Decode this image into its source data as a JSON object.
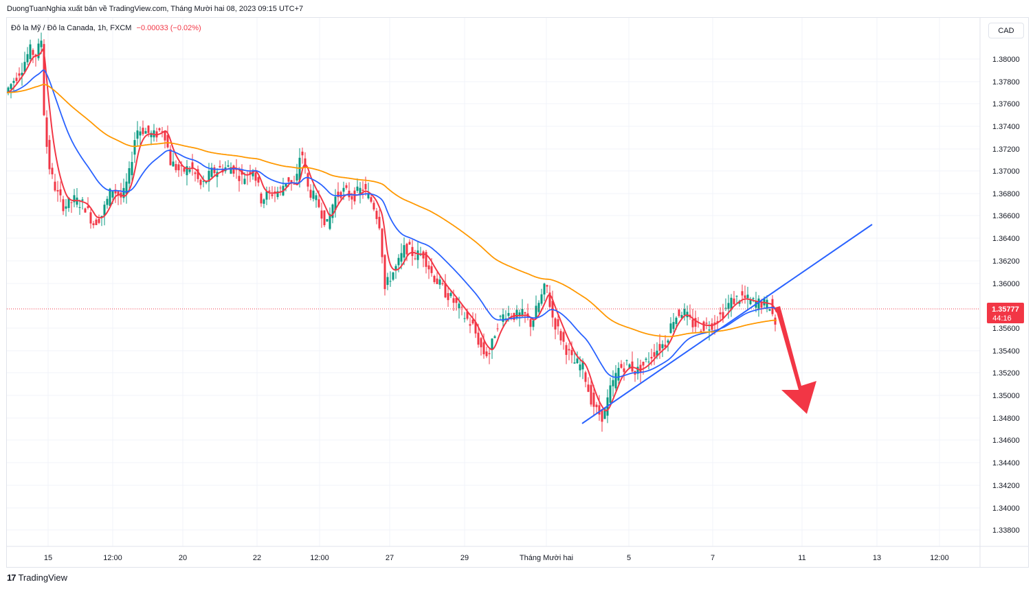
{
  "header": {
    "publish_line": "DuongTuanNghia xuất bản về TradingView.com, Tháng Mười hai 08, 2023 09:15 UTC+7"
  },
  "legend": {
    "symbol": "Đô la Mỹ / Đô la Canada, 1h, FXCM",
    "change": "−0.00033 (−0.02%)"
  },
  "currency_button": "CAD",
  "price_label": {
    "price": "1.35777",
    "countdown": "44:16"
  },
  "footer": {
    "brand": "TradingView",
    "logo": "17"
  },
  "colors": {
    "up": "#089981",
    "down": "#f23645",
    "ema_fast": "#f23645",
    "ema_mid": "#2962ff",
    "ema_slow": "#ff9800",
    "trendline": "#2962ff",
    "arrow": "#f23645",
    "grid": "#f0f3fa"
  },
  "chart_data": {
    "type": "candlestick",
    "timeframe": "1h",
    "instrument": "USD/CAD",
    "ylim": [
      1.3372,
      1.3853
    ],
    "y_ticks": [
      "1.38000",
      "1.37800",
      "1.37600",
      "1.37400",
      "1.37200",
      "1.37000",
      "1.36800",
      "1.36600",
      "1.36400",
      "1.36200",
      "1.36000",
      "1.35600",
      "1.35400",
      "1.35200",
      "1.35000",
      "1.34800",
      "1.34600",
      "1.34400",
      "1.34200",
      "1.34000",
      "1.33800"
    ],
    "x_ticks": [
      "15",
      "12:00",
      "20",
      "22",
      "12:00",
      "27",
      "29",
      "Tháng Mười hai",
      "5",
      "7",
      "11",
      "13",
      "12:00"
    ],
    "current_price": 1.35777,
    "price_path": [
      [
        0,
        1.3795
      ],
      [
        10,
        1.3805
      ],
      [
        25,
        1.382
      ],
      [
        35,
        1.3835
      ],
      [
        45,
        1.383
      ],
      [
        52,
        1.3845
      ],
      [
        57,
        1.376
      ],
      [
        65,
        1.372
      ],
      [
        75,
        1.37
      ],
      [
        85,
        1.3688
      ],
      [
        100,
        1.3694
      ],
      [
        115,
        1.3689
      ],
      [
        128,
        1.3672
      ],
      [
        140,
        1.368
      ],
      [
        155,
        1.3705
      ],
      [
        170,
        1.3695
      ],
      [
        180,
        1.3718
      ],
      [
        190,
        1.376
      ],
      [
        200,
        1.376
      ],
      [
        215,
        1.3754
      ],
      [
        230,
        1.3762
      ],
      [
        240,
        1.373
      ],
      [
        255,
        1.372
      ],
      [
        270,
        1.3725
      ],
      [
        285,
        1.3706
      ],
      [
        300,
        1.372
      ],
      [
        315,
        1.3724
      ],
      [
        330,
        1.3725
      ],
      [
        345,
        1.3714
      ],
      [
        360,
        1.3725
      ],
      [
        372,
        1.3695
      ],
      [
        385,
        1.37
      ],
      [
        400,
        1.3703
      ],
      [
        410,
        1.3715
      ],
      [
        422,
        1.3705
      ],
      [
        430,
        1.3745
      ],
      [
        440,
        1.3705
      ],
      [
        455,
        1.369
      ],
      [
        468,
        1.367
      ],
      [
        478,
        1.3695
      ],
      [
        490,
        1.3703
      ],
      [
        505,
        1.3697
      ],
      [
        520,
        1.3705
      ],
      [
        535,
        1.369
      ],
      [
        545,
        1.367
      ],
      [
        552,
        1.361
      ],
      [
        560,
        1.3622
      ],
      [
        570,
        1.3632
      ],
      [
        582,
        1.365
      ],
      [
        595,
        1.3642
      ],
      [
        608,
        1.3643
      ],
      [
        620,
        1.3625
      ],
      [
        635,
        1.3611
      ],
      [
        650,
        1.36
      ],
      [
        665,
        1.3587
      ],
      [
        680,
        1.3575
      ],
      [
        695,
        1.355
      ],
      [
        705,
        1.355
      ],
      [
        715,
        1.3578
      ],
      [
        728,
        1.3588
      ],
      [
        742,
        1.3585
      ],
      [
        755,
        1.3586
      ],
      [
        765,
        1.3577
      ],
      [
        775,
        1.3595
      ],
      [
        787,
        1.3615
      ],
      [
        795,
        1.3585
      ],
      [
        810,
        1.3562
      ],
      [
        825,
        1.3542
      ],
      [
        840,
        1.3537
      ],
      [
        850,
        1.351
      ],
      [
        860,
        1.3495
      ],
      [
        870,
        1.349
      ],
      [
        880,
        1.3515
      ],
      [
        892,
        1.3535
      ],
      [
        905,
        1.354
      ],
      [
        918,
        1.3532
      ],
      [
        930,
        1.354
      ],
      [
        945,
        1.3552
      ],
      [
        960,
        1.356
      ],
      [
        972,
        1.3583
      ],
      [
        985,
        1.359
      ],
      [
        998,
        1.3578
      ],
      [
        1012,
        1.3575
      ],
      [
        1025,
        1.3576
      ],
      [
        1040,
        1.3585
      ],
      [
        1055,
        1.3598
      ],
      [
        1070,
        1.3603
      ],
      [
        1085,
        1.3598
      ],
      [
        1100,
        1.3597
      ],
      [
        1112,
        1.3595
      ],
      [
        1120,
        1.35777
      ]
    ],
    "series": [
      {
        "name": "",
        "type": "ema",
        "color": "#f23645",
        "span": 4
      },
      {
        "name": "",
        "type": "ema",
        "color": "#2962ff",
        "span": 22
      },
      {
        "name": "",
        "type": "ema",
        "color": "#ff9800",
        "span": 80
      }
    ],
    "trendline": {
      "from": [
        1.3475
      ],
      "to": [
        1.3653
      ]
    },
    "arrow": {
      "direction": "down"
    }
  }
}
